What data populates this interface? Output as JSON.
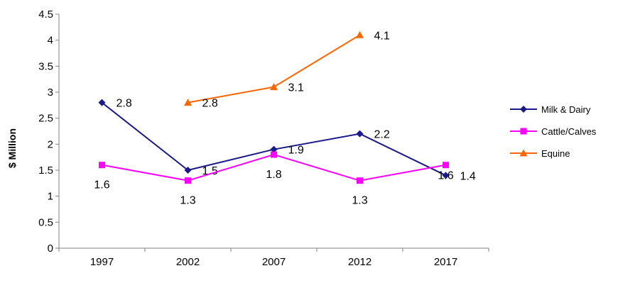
{
  "chart_data": {
    "type": "line",
    "categories": [
      "1997",
      "2002",
      "2007",
      "2012",
      "2017"
    ],
    "ylabel": "$ Million",
    "ylim": [
      0,
      4.5
    ],
    "yticks": [
      "0",
      "0.5",
      "1",
      "1.5",
      "2",
      "2.5",
      "3",
      "3.5",
      "4",
      "4.5"
    ],
    "grid": false,
    "legend_position": "right",
    "series": [
      {
        "name": "Milk & Dairy",
        "color": "#1a1a8c",
        "marker": "diamond",
        "values": [
          2.8,
          1.5,
          1.9,
          2.2,
          1.4
        ],
        "labels": [
          "2.8",
          "1.5",
          "1.9",
          "2.2",
          "1.4"
        ]
      },
      {
        "name": "Cattle/Calves",
        "color": "#ff00ff",
        "marker": "square",
        "values": [
          1.6,
          1.3,
          1.8,
          1.3,
          1.6
        ],
        "labels": [
          "1.6",
          "1.3",
          "1.8",
          "1.3",
          "1.6"
        ]
      },
      {
        "name": "Equine",
        "color": "#ff6600",
        "marker": "triangle",
        "values": [
          null,
          2.8,
          3.1,
          4.1,
          null
        ],
        "labels": [
          null,
          "2.8",
          "3.1",
          "4.1",
          null
        ]
      }
    ]
  }
}
